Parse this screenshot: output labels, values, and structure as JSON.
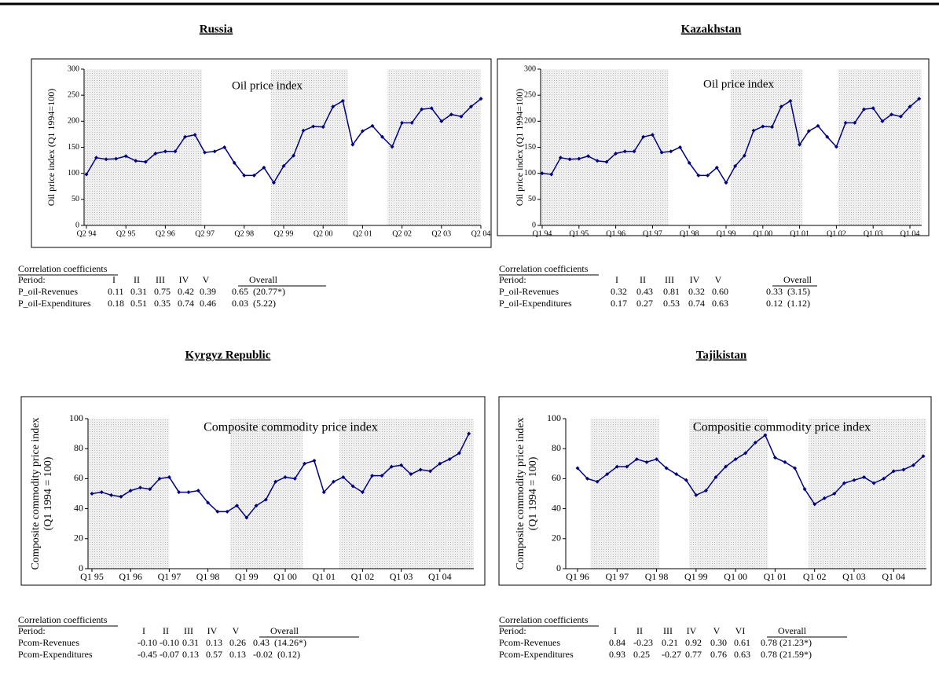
{
  "chart_data": [
    {
      "type": "line",
      "title": "Russia",
      "annotation": "Oil price index",
      "y_label": [
        "Oil price index (Q1 1994=100)"
      ],
      "color": "#000080",
      "categories": [
        "Q2 94",
        null,
        null,
        null,
        "Q2 95",
        null,
        null,
        null,
        "Q2 96",
        null,
        null,
        null,
        "Q2 97",
        null,
        null,
        null,
        "Q2 98",
        null,
        null,
        null,
        "Q2 99",
        null,
        null,
        null,
        "Q2 00",
        null,
        null,
        null,
        "Q2 01",
        null,
        null,
        null,
        "Q2 02",
        null,
        null,
        null,
        "Q2 03",
        null,
        null,
        null,
        "Q2 04"
      ],
      "values": [
        98,
        130,
        127,
        128,
        133,
        124,
        122,
        138,
        142,
        142,
        170,
        174,
        140,
        142,
        150,
        120,
        96,
        96,
        111,
        82,
        114,
        134,
        182,
        190,
        189,
        228,
        239,
        155,
        181,
        191,
        170,
        151,
        197,
        197,
        223,
        225,
        200,
        213,
        209,
        228,
        243
      ],
      "ylim": [
        0,
        300
      ],
      "yticks": [
        0,
        50,
        100,
        150,
        200,
        250,
        300
      ]
    },
    {
      "type": "line",
      "title": "Kazakhstan",
      "annotation": "Oil price index",
      "y_label": [
        "Oil price index (Q1 1994=100)"
      ],
      "color": "#000080",
      "categories": [
        "Q1 94",
        null,
        null,
        null,
        "Q1 95",
        null,
        null,
        null,
        "Q1 96",
        null,
        null,
        null,
        "Q1 97",
        null,
        null,
        null,
        "Q1 98",
        null,
        null,
        null,
        "Q1 99",
        null,
        null,
        null,
        "Q1 00",
        null,
        null,
        null,
        "Q1 01",
        null,
        null,
        null,
        "Q1 02",
        null,
        null,
        null,
        "Q1 03",
        null,
        null,
        null,
        "Q1 04",
        null
      ],
      "values": [
        100,
        98,
        130,
        127,
        128,
        133,
        124,
        122,
        138,
        142,
        142,
        170,
        174,
        140,
        142,
        150,
        120,
        96,
        96,
        111,
        82,
        114,
        134,
        182,
        190,
        189,
        228,
        239,
        155,
        181,
        191,
        170,
        151,
        197,
        197,
        223,
        225,
        200,
        213,
        209,
        228,
        243
      ],
      "ylim": [
        0,
        300
      ],
      "yticks": [
        0,
        50,
        100,
        150,
        200,
        250,
        300
      ]
    },
    {
      "type": "line",
      "title": "Kyrgyz Republic",
      "annotation": "Composite commodity price index",
      "y_label": [
        "Composite commodity price index",
        "(Q1 1994 = 100)"
      ],
      "color": "#000080",
      "categories": [
        "Q1 95",
        null,
        null,
        null,
        "Q1 96",
        null,
        null,
        null,
        "Q1 97",
        null,
        null,
        null,
        "Q1 98",
        null,
        null,
        null,
        "Q1 99",
        null,
        null,
        null,
        "Q1 00",
        null,
        null,
        null,
        "Q1 01",
        null,
        null,
        null,
        "Q1 02",
        null,
        null,
        null,
        "Q1 03",
        null,
        null,
        null,
        "Q1 04",
        null,
        null,
        null
      ],
      "values": [
        50,
        51,
        49,
        48,
        52,
        54,
        53,
        60,
        61,
        51,
        51,
        52,
        44,
        38,
        38,
        42,
        34,
        42,
        46,
        58,
        61,
        60,
        70,
        72,
        51,
        58,
        61,
        55,
        51,
        62,
        62,
        68,
        69,
        63,
        66,
        65,
        70,
        73,
        77,
        90
      ],
      "ylim": [
        0,
        100
      ],
      "yticks": [
        0,
        20,
        40,
        60,
        80,
        100
      ]
    },
    {
      "type": "line",
      "title": "Tajikistan",
      "annotation": "Compositie commodity price index",
      "y_label": [
        "Composite commodity price index",
        "(Q1 1994 = 100)"
      ],
      "color": "#000080",
      "categories": [
        "Q1 96",
        null,
        null,
        null,
        "Q1 97",
        null,
        null,
        null,
        "Q1 98",
        null,
        null,
        null,
        "Q1 99",
        null,
        null,
        null,
        "Q1 00",
        null,
        null,
        null,
        "Q1 01",
        null,
        null,
        null,
        "Q1 02",
        null,
        null,
        null,
        "Q1 03",
        null,
        null,
        null,
        "Q1 04",
        null,
        null,
        null
      ],
      "values": [
        67,
        60,
        58,
        63,
        68,
        68,
        73,
        71,
        73,
        67,
        63,
        59,
        49,
        52,
        61,
        68,
        73,
        77,
        84,
        89,
        74,
        71,
        67,
        53,
        43,
        47,
        50,
        57,
        59,
        61,
        57,
        60,
        65,
        66,
        69,
        75
      ],
      "ylim": [
        0,
        100
      ],
      "yticks": [
        0,
        20,
        40,
        60,
        80,
        100
      ]
    }
  ],
  "tables": [
    {
      "title": "Correlation coefficients",
      "header": [
        "Period:",
        "I",
        "II",
        "III",
        "IV",
        "V",
        "Overall"
      ],
      "rows": [
        [
          "P_oil-Revenues",
          "0.11",
          "0.31",
          "0.75",
          "0.42",
          "0.39",
          "0.65  (20.77*)"
        ],
        [
          "P_oil-Expenditures",
          "0.18",
          "0.51",
          "0.35",
          "0.74",
          "0.46",
          "0.03  (5.22)"
        ]
      ]
    },
    {
      "title": "Correlation coefficients",
      "header": [
        "Period:",
        "I",
        "II",
        "III",
        "IV",
        "V",
        "Overall"
      ],
      "rows": [
        [
          "P_oil-Revenues",
          "0.32",
          "0.43",
          "0.81",
          "0.32",
          "0.60",
          "0.33  (3.15)"
        ],
        [
          "P_oil-Expenditures",
          "0.17",
          "0.27",
          "0.53",
          "0.74",
          "0.63",
          "0.12  (1.12)"
        ]
      ]
    },
    {
      "title": "Correlation coefficients",
      "header": [
        "Period:",
        "I",
        "II",
        "III",
        "IV",
        "V",
        "Overall"
      ],
      "rows": [
        [
          "Pcom-Revenues",
          "-0.10",
          "-0.10",
          "0.31",
          "0.13",
          "0.26",
          "0.43  (14.26*)"
        ],
        [
          "Pcom-Expenditures",
          "-0.45",
          "-0.07",
          "0.13",
          "0.57",
          "0.13",
          "-0.02  (0.12)"
        ]
      ]
    },
    {
      "title": "Correlation coefficients",
      "header": [
        "Period:",
        "I",
        "II",
        "III",
        "IV",
        "V",
        "VI",
        "Overall"
      ],
      "rows": [
        [
          "Pcom-Revenues",
          "0.84",
          "-0.23",
          "0.21",
          "0.92",
          "0.30",
          "0.61",
          "0.78 (21.23*)"
        ],
        [
          "Pcom-Expenditures",
          "0.93",
          "0.25",
          "-0.27",
          "0.77",
          "0.76",
          "0.63",
          "0.78 (21.59*)"
        ]
      ]
    }
  ]
}
